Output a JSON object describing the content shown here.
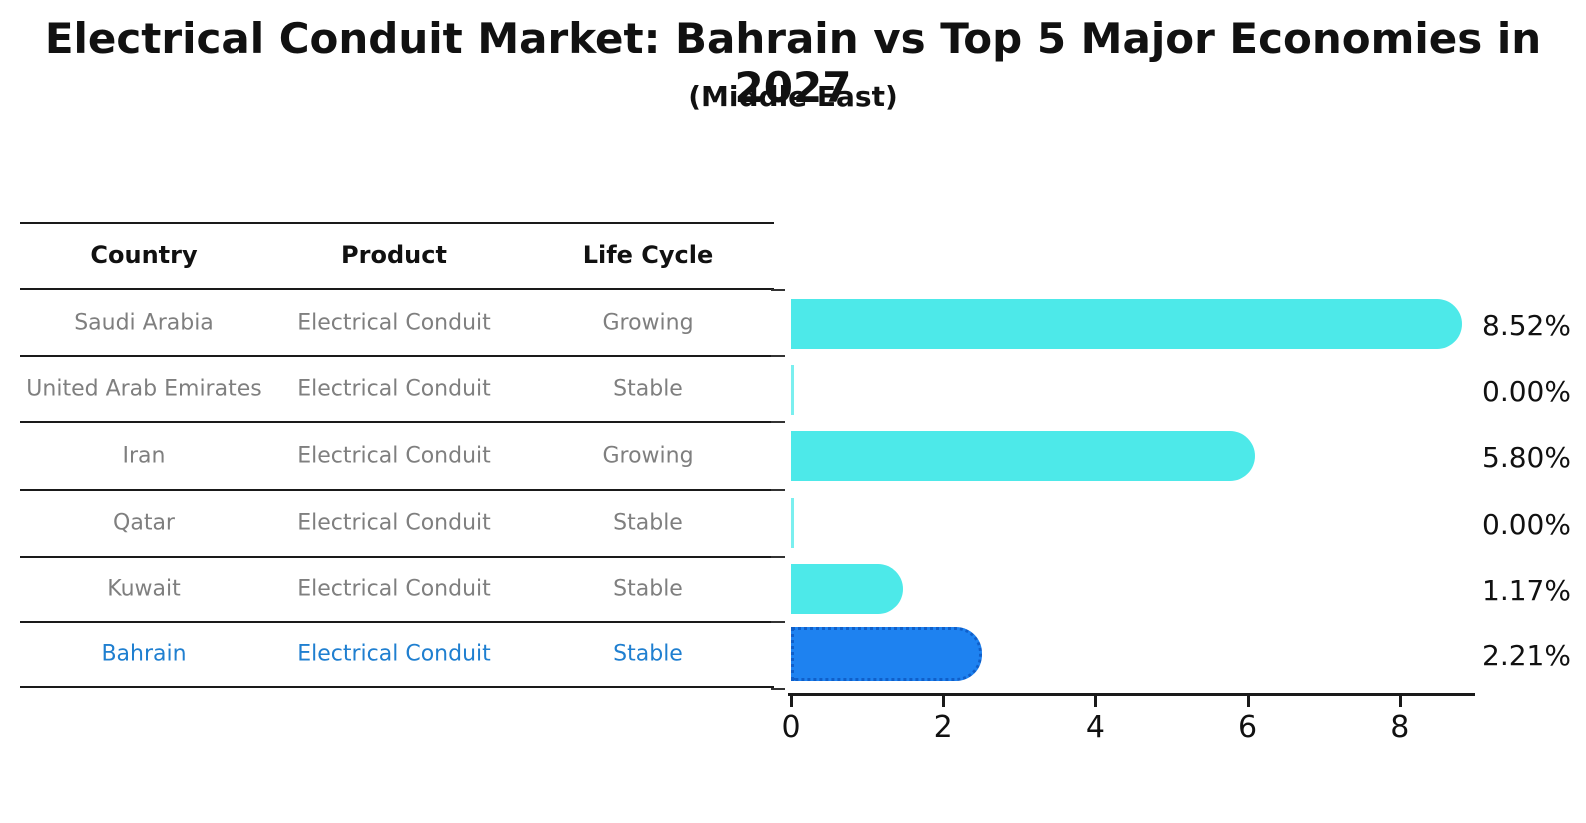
{
  "header": {
    "title": "Electrical Conduit Market: Bahrain vs Top 5 Major Economies in 2027",
    "subtitle": "(Middle East)"
  },
  "table": {
    "headers": [
      "Country",
      "Product",
      "Life Cycle"
    ],
    "rows": [
      {
        "country": "Saudi Arabia",
        "product": "Electrical Conduit",
        "life_cycle": "Growing",
        "highlight": false
      },
      {
        "country": "United Arab Emirates",
        "product": "Electrical Conduit",
        "life_cycle": "Stable",
        "highlight": false
      },
      {
        "country": "Iran",
        "product": "Electrical Conduit",
        "life_cycle": "Growing",
        "highlight": false
      },
      {
        "country": "Qatar",
        "product": "Electrical Conduit",
        "life_cycle": "Stable",
        "highlight": false
      },
      {
        "country": "Kuwait",
        "product": "Electrical Conduit",
        "life_cycle": "Stable",
        "highlight": false
      },
      {
        "country": "Bahrain",
        "product": "Electrical Conduit",
        "life_cycle": "Stable",
        "highlight": true
      }
    ]
  },
  "chart_data": {
    "type": "bar",
    "orientation": "horizontal",
    "title": "Electrical Conduit Market: Bahrain vs Top 5 Major Economies in 2027",
    "subtitle": "(Middle East)",
    "categories": [
      "Saudi Arabia",
      "United Arab Emirates",
      "Iran",
      "Qatar",
      "Kuwait",
      "Bahrain"
    ],
    "values": [
      8.52,
      0.0,
      5.8,
      0.0,
      1.17,
      2.21
    ],
    "value_labels": [
      "8.52%",
      "0.00%",
      "5.80%",
      "0.00%",
      "1.17%",
      "2.21%"
    ],
    "xticks": [
      0,
      2,
      4,
      6,
      8
    ],
    "xlim": [
      0,
      8.96
    ],
    "grid": false,
    "legend": false,
    "highlight_index": 5,
    "unit": "percent"
  },
  "colors": {
    "bar_default": "#4de9e9",
    "bar_highlight": "#1e82f0",
    "bar_highlight_border": "#0f5fca",
    "highlight_text": "#1f7fd0",
    "row_text": "#7f7f7f",
    "axis": "#1a1a1a"
  }
}
